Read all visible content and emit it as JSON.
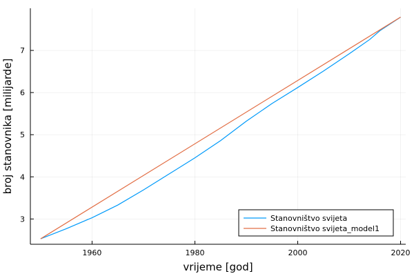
{
  "chart_data": {
    "type": "line",
    "title": "",
    "xlabel": "vrijeme [god]",
    "ylabel": "broj stanovnika [milijarde]",
    "xlim": [
      1948,
      2021
    ],
    "ylim": [
      2.4,
      8.0
    ],
    "xticks": [
      1960,
      1980,
      2000,
      2020
    ],
    "yticks": [
      3,
      4,
      5,
      6,
      7
    ],
    "grid": true,
    "legend_position": "bottom-right",
    "series": [
      {
        "name": "Stanovništvo svijeta",
        "color": "#009AFA",
        "x": [
          1950,
          1955,
          1960,
          1965,
          1970,
          1975,
          1980,
          1985,
          1990,
          1995,
          2000,
          2005,
          2010,
          2014,
          2016,
          2020
        ],
        "y": [
          2.53,
          2.77,
          3.03,
          3.33,
          3.69,
          4.07,
          4.45,
          4.86,
          5.32,
          5.74,
          6.12,
          6.51,
          6.92,
          7.26,
          7.47,
          7.79
        ]
      },
      {
        "name": "Stanovništvo svijeta_model1",
        "color": "#E26F46",
        "x": [
          1950,
          2020
        ],
        "y": [
          2.53,
          7.79
        ]
      }
    ]
  }
}
